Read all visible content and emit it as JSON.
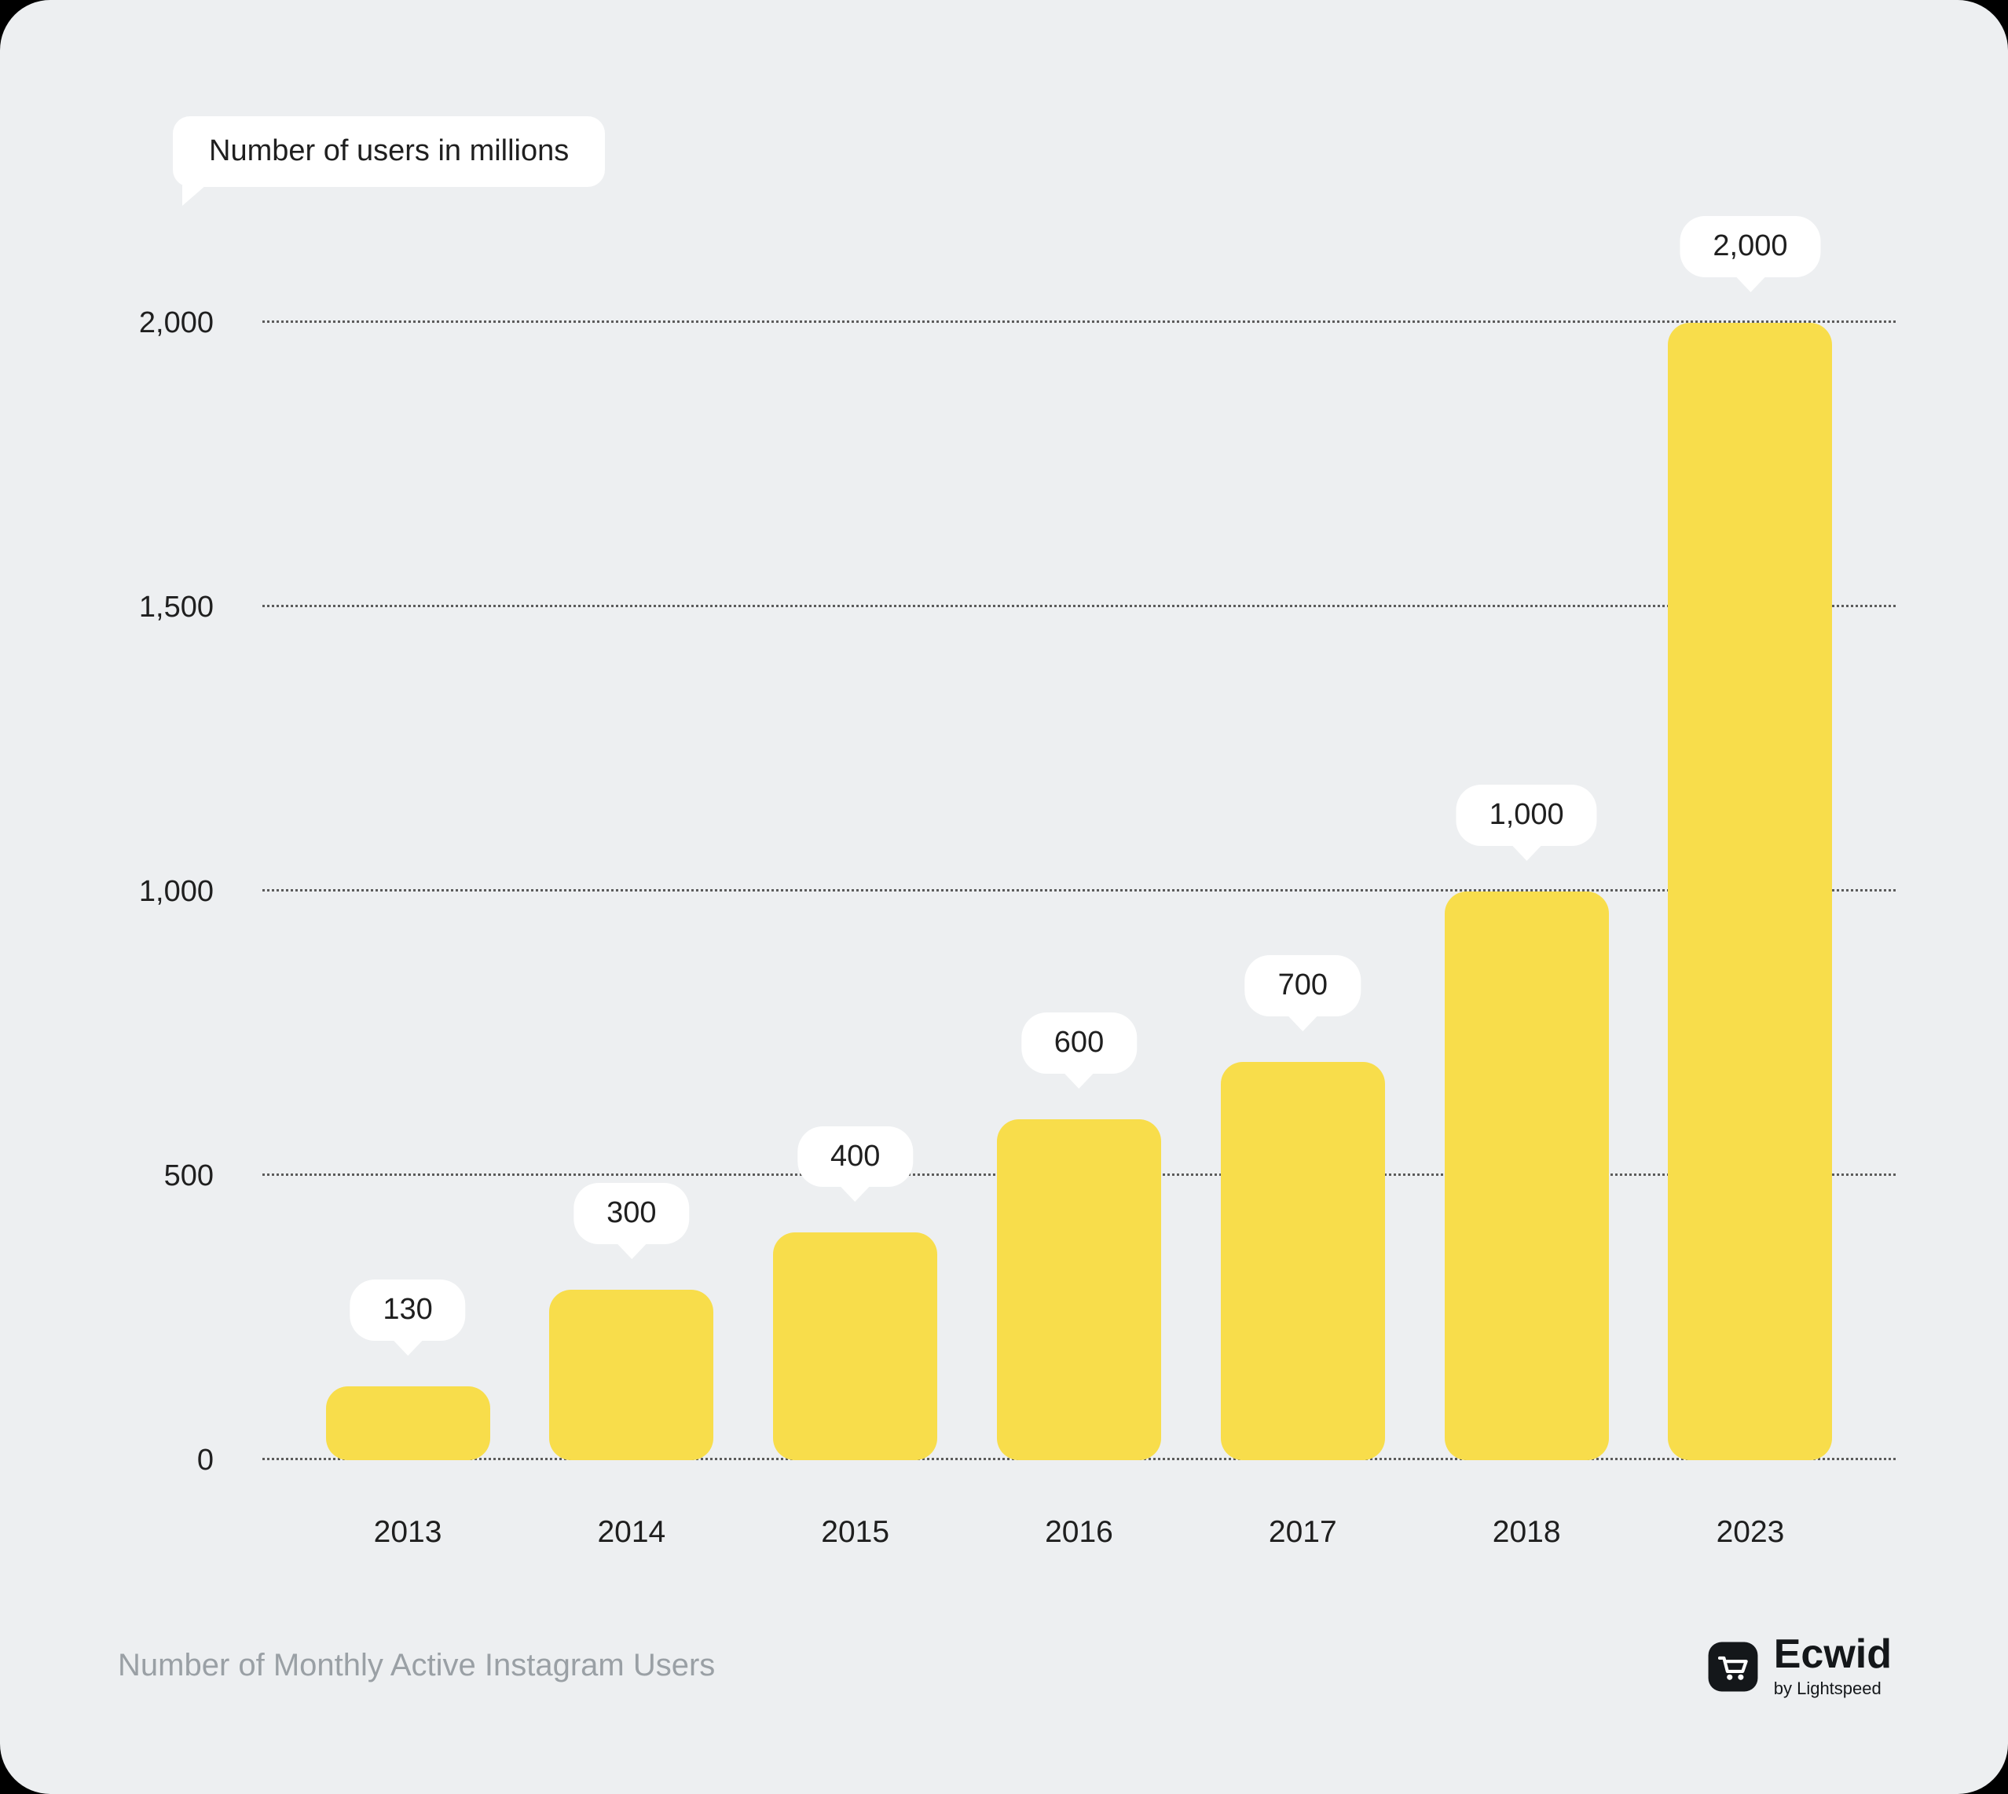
{
  "legend": {
    "label": "Number of users in millions"
  },
  "chart_data": {
    "type": "bar",
    "title": "Number of users in millions",
    "categories": [
      "2013",
      "2014",
      "2015",
      "2016",
      "2017",
      "2018",
      "2023"
    ],
    "values": [
      130,
      300,
      400,
      600,
      700,
      1000,
      2000
    ],
    "value_labels": [
      "130",
      "300",
      "400",
      "600",
      "700",
      "1,000",
      "2,000"
    ],
    "xlabel": "",
    "ylabel": "",
    "ylim": [
      0,
      2000
    ],
    "yticks": [
      0,
      500,
      1000,
      1500,
      2000
    ],
    "ytick_labels": [
      "0",
      "500",
      "1,000",
      "1,500",
      "2,000"
    ],
    "grid": "horizontal-dotted",
    "legend_position": "top-left",
    "bar_color": "#F8DD4B"
  },
  "footer": {
    "caption": "Number of Monthly Active Instagram Users",
    "brand": {
      "name": "Ecwid",
      "byline": "by Lightspeed",
      "icon": "shopping-cart-icon"
    }
  },
  "colors": {
    "background": "#EDEFF1",
    "bar": "#F8DD4B",
    "bubble": "#FFFFFF",
    "text": "#1F1F1F",
    "grid": "#5B5B5B",
    "muted": "#9AA0A5",
    "outer": "#000000"
  }
}
